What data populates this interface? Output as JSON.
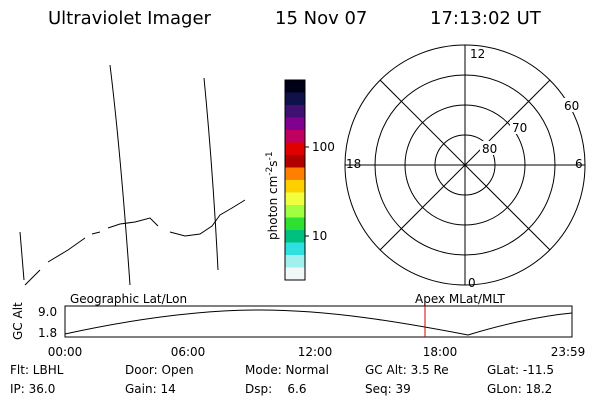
{
  "header": {
    "title": "Ultraviolet Imager",
    "date": "15 Nov 07",
    "time": "17:13:02 UT"
  },
  "colorbar": {
    "unit": {
      "base": "photon cm",
      "exp1": "-2",
      "mid": "s",
      "exp2": "-1"
    },
    "ticks": [
      "100",
      "10"
    ]
  },
  "polar": {
    "lat_labels": [
      "60",
      "70",
      "80"
    ],
    "mlt_labels": {
      "top": "12",
      "bottom": "0",
      "left": "18",
      "right": "6"
    }
  },
  "timeline": {
    "left_label": "Geographic Lat/Lon",
    "right_label": "Apex MLat/MLT",
    "y_label": "GC Alt",
    "y_ticks": [
      "9.0",
      "1.8"
    ],
    "x_ticks": [
      "00:00",
      "06:00",
      "12:00",
      "18:00",
      "23:59"
    ]
  },
  "status": [
    [
      "Flt: LBHL",
      "Door: Open",
      "Mode: Normal",
      "GC Alt: 3.5 Re",
      "GLat: -11.5"
    ],
    [
      "IP: 36.0",
      "Gain: 14",
      "Dsp:    6.6",
      "Seq: 39",
      "GLon: 18.2"
    ]
  ]
}
